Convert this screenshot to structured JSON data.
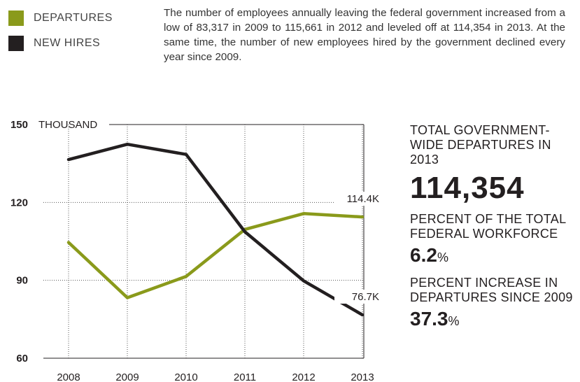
{
  "legend": [
    {
      "label": "DEPARTURES",
      "color": "#8a9a1b"
    },
    {
      "label": "NEW HIRES",
      "color": "#231f20"
    }
  ],
  "intro": "The number of employees annually leaving the federal government increased from a low of 83,317 in 2009 to 115,661 in 2012 and leveled off at 114,354 in 2013. At the same time, the number of new employees hired by the government declined every year since 2009.",
  "sidebar": {
    "stat1_label": "TOTAL GOVERNMENT-WIDE DEPARTURES IN 2013",
    "stat1_value": "114,354",
    "stat2_label": "PERCENT OF THE TOTAL FEDERAL WORKFORCE",
    "stat2_value": "6.2",
    "stat3_label": "PERCENT INCREASE IN DEPARTURES SINCE 2009",
    "stat3_value": "37.3",
    "percent_sign": "%"
  },
  "chart_data": {
    "type": "line",
    "x": [
      "2008",
      "2009",
      "2010",
      "2011",
      "2012",
      "2013"
    ],
    "ylim": [
      60,
      150
    ],
    "yticks": [
      "60",
      "90",
      "120",
      "150"
    ],
    "yunit": "THOUSAND",
    "grid": "dotted",
    "series": [
      {
        "name": "DEPARTURES",
        "color": "#8a9a1b",
        "values": [
          104.6,
          83.3,
          91.5,
          109.6,
          115.7,
          114.4
        ],
        "end_label": "114.4K"
      },
      {
        "name": "NEW HIRES",
        "color": "#231f20",
        "values": [
          136.5,
          142.4,
          138.5,
          108.7,
          89.8,
          76.7
        ],
        "end_label": "76.7K"
      }
    ]
  }
}
